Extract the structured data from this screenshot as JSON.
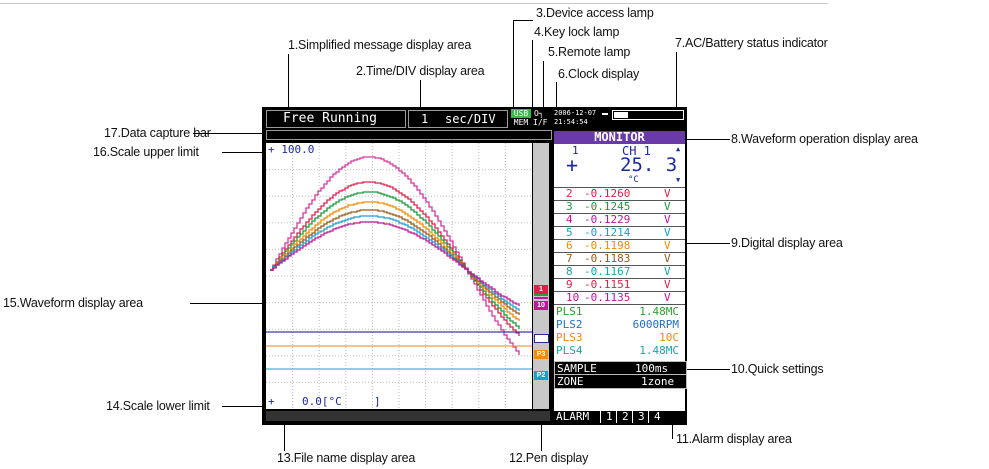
{
  "callouts": {
    "c1": "1.Simplified message display area",
    "c2": "2.Time/DIV display area",
    "c3": "3.Device access lamp",
    "c4": "4.Key lock lamp",
    "c5": "5.Remote lamp",
    "c6": "6.Clock display",
    "c7": "7.AC/Battery status indicator",
    "c8": "8.Waveform operation display area",
    "c9": "9.Digital display area",
    "c10": "10.Quick settings",
    "c11": "11.Alarm display area",
    "c12": "12.Pen display",
    "c13": "13.File name display area",
    "c14": "14.Scale lower limit",
    "c15": "15.Waveform display area",
    "c16": "16.Scale upper limit",
    "c17": "17.Data capture bar"
  },
  "screen": {
    "message": "Free Running",
    "timediv_value": "1",
    "timediv_unit": "sec/DIV",
    "lamp_usb": "USB",
    "lamp_mem": "MEM",
    "lamp_key": "O┐",
    "lamp_remote": "I/F",
    "clock_date": "2006-12-07",
    "clock_time": "21:54:54",
    "scale_upper": "+ 100.0",
    "scale_lower_sign": "+",
    "scale_lower_value": "0.0[°C",
    "scale_lower_close": "]",
    "monitor_title": "MONITOR",
    "ch1": {
      "num": "1",
      "label": "CH 1",
      "sign": "+",
      "value": "25. 3",
      "unit": "°C"
    },
    "digital": [
      {
        "ch": "2",
        "val": "-0.1260",
        "unit": "V",
        "color": "#e0204a"
      },
      {
        "ch": "3",
        "val": "-0.1245",
        "unit": "V",
        "color": "#1a9a3c"
      },
      {
        "ch": "4",
        "val": "-0.1229",
        "unit": "V",
        "color": "#c0169a"
      },
      {
        "ch": "5",
        "val": "-0.1214",
        "unit": "V",
        "color": "#1aa0d0"
      },
      {
        "ch": "6",
        "val": "-0.1198",
        "unit": "V",
        "color": "#f08c00"
      },
      {
        "ch": "7",
        "val": "-0.1183",
        "unit": "V",
        "color": "#9a5a1a"
      },
      {
        "ch": "8",
        "val": "-0.1167",
        "unit": "V",
        "color": "#18a6a6"
      },
      {
        "ch": "9",
        "val": "-0.1151",
        "unit": "V",
        "color": "#e0204a"
      },
      {
        "ch": "10",
        "val": "-0.1135",
        "unit": "V",
        "color": "#c0169a"
      }
    ],
    "pulse": [
      {
        "name": "PLS1",
        "val": "1.48MC",
        "color": "#2aa02a"
      },
      {
        "name": "PLS2",
        "val": "6000RPM",
        "color": "#2070d0"
      },
      {
        "name": "PLS3",
        "val": "10C",
        "color": "#f08c00"
      },
      {
        "name": "PLS4",
        "val": "1.48MC",
        "color": "#18a6a6"
      }
    ],
    "quick": {
      "sample_label": "SAMPLE",
      "sample_value": "100ms",
      "zone_label": "ZONE",
      "zone_value": "1zone"
    },
    "alarm": {
      "label": "ALARM",
      "a1": "1",
      "a2": "2",
      "a3": "3",
      "a4": "4"
    },
    "pens": {
      "p1": "1",
      "p10": "10",
      "pa": "P3",
      "pb": "P2"
    }
  }
}
